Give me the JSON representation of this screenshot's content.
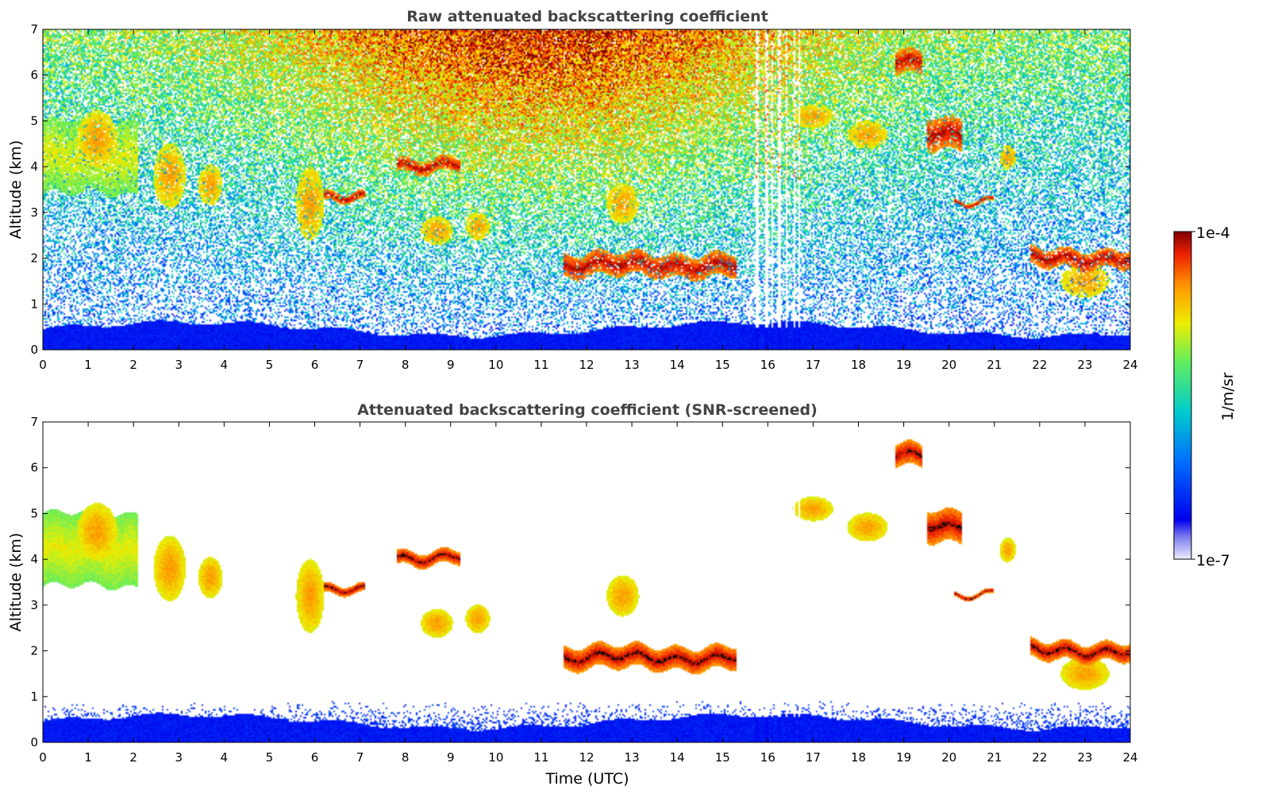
{
  "chart_data": [
    {
      "type": "heatmap",
      "title": "Raw attenuated backscattering coefficient",
      "xlabel": "",
      "ylabel": "Altitude (km)",
      "xlim": [
        0,
        24
      ],
      "ylim": [
        0,
        7
      ],
      "xticks": [
        "0",
        "1",
        "2",
        "3",
        "4",
        "5",
        "6",
        "7",
        "8",
        "9",
        "10",
        "11",
        "12",
        "13",
        "14",
        "15",
        "16",
        "17",
        "18",
        "19",
        "20",
        "21",
        "22",
        "23",
        "24"
      ],
      "yticks": [
        "0",
        "1",
        "2",
        "3",
        "4",
        "5",
        "6",
        "7"
      ],
      "value_scale": "log",
      "value_range": [
        1e-07,
        0.0001
      ],
      "missing_data_intervals": [
        [
          15.72,
          15.8
        ],
        [
          15.95,
          16.0
        ],
        [
          16.08,
          16.12
        ],
        [
          16.22,
          16.3
        ],
        [
          16.4,
          16.44
        ],
        [
          16.58,
          16.62
        ],
        [
          16.68,
          16.72
        ]
      ],
      "features": [
        {
          "kind": "near-surface aerosol layer",
          "x_range": [
            0,
            24
          ],
          "altitude_km": [
            0,
            0.6
          ],
          "level": "low"
        },
        {
          "kind": "cloud layer",
          "x_range": [
            7.8,
            9.2
          ],
          "altitude_km": [
            3.9,
            4.2
          ],
          "level": "high"
        },
        {
          "kind": "cloud layer",
          "x_range": [
            6.2,
            7.1
          ],
          "altitude_km": [
            3.2,
            3.4
          ],
          "level": "high"
        },
        {
          "kind": "cloud layer",
          "x_range": [
            11.5,
            15.3
          ],
          "altitude_km": [
            1.6,
            2.1
          ],
          "level": "high"
        },
        {
          "kind": "cloud layer",
          "x_range": [
            20.1,
            21.0
          ],
          "altitude_km": [
            3.2,
            3.3
          ],
          "level": "high"
        },
        {
          "kind": "cloud layer",
          "x_range": [
            21.8,
            24
          ],
          "altitude_km": [
            1.8,
            2.2
          ],
          "level": "high"
        },
        {
          "kind": "cloud layer",
          "x_range": [
            18.8,
            19.4
          ],
          "altitude_km": [
            6.0,
            6.5
          ],
          "level": "high"
        },
        {
          "kind": "cirrus",
          "x_range": [
            0,
            2.1
          ],
          "altitude_km": [
            3.4,
            5.0
          ],
          "level": "medium"
        },
        {
          "kind": "cirrus",
          "x_range": [
            19.5,
            20.3
          ],
          "altitude_km": [
            4.4,
            5.1
          ],
          "level": "high"
        }
      ]
    },
    {
      "type": "heatmap",
      "title": "Attenuated backscattering coefficient (SNR-screened)",
      "xlabel": "Time (UTC)",
      "ylabel": "Altitude (km)",
      "xlim": [
        0,
        24
      ],
      "ylim": [
        0,
        7
      ],
      "xticks": [
        "0",
        "1",
        "2",
        "3",
        "4",
        "5",
        "6",
        "7",
        "8",
        "9",
        "10",
        "11",
        "12",
        "13",
        "14",
        "15",
        "16",
        "17",
        "18",
        "19",
        "20",
        "21",
        "22",
        "23",
        "24"
      ],
      "yticks": [
        "0",
        "1",
        "2",
        "3",
        "4",
        "5",
        "6",
        "7"
      ],
      "value_scale": "log",
      "value_range": [
        1e-07,
        0.0001
      ],
      "screening": "SNR"
    }
  ],
  "colorbar": {
    "label": "1/m/sr",
    "max_label": "1e-4",
    "min_label": "1e-7",
    "stops": [
      "#eeeeff",
      "#0000ee",
      "#0070ff",
      "#00cccc",
      "#60ee60",
      "#eeee00",
      "#ff9000",
      "#ee2000",
      "#800000"
    ]
  },
  "colors": {
    "background": "#ffffff",
    "axes": "#000000",
    "title": "#444444"
  }
}
